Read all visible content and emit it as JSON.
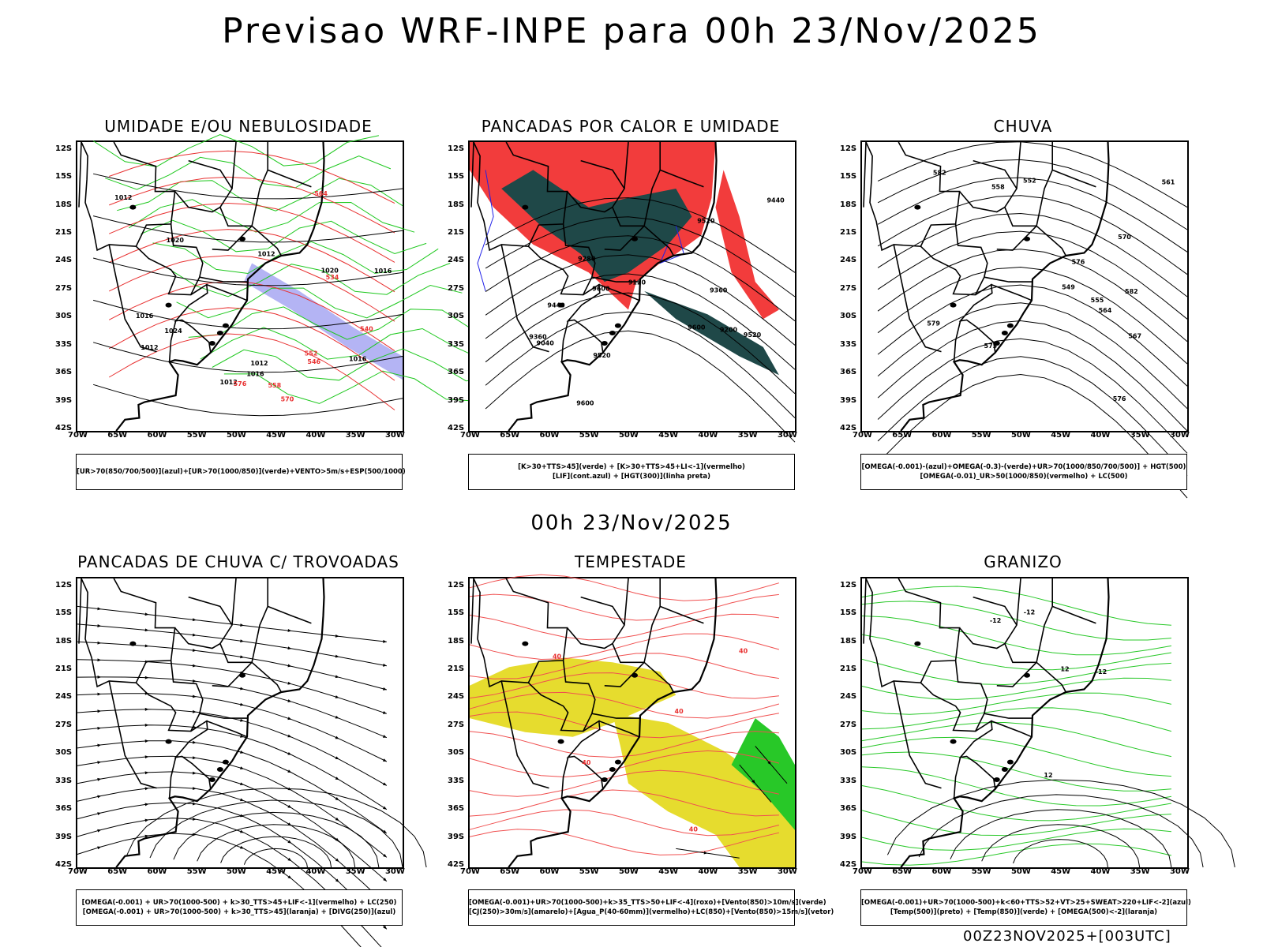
{
  "title": "Previsao WRF-INPE  para 00h 23/Nov/2025",
  "mid_title": "00h 23/Nov/2025",
  "footer": "00Z23NOV2025+[003UTC]",
  "lat_labels": [
    "12S",
    "15S",
    "18S",
    "21S",
    "24S",
    "27S",
    "30S",
    "33S",
    "36S",
    "39S",
    "42S"
  ],
  "lon_labels": [
    "70W",
    "65W",
    "60W",
    "55W",
    "50W",
    "45W",
    "40W",
    "35W",
    "30W"
  ],
  "panels": [
    {
      "title": "UMIDADE E/OU NEBULOSIDADE",
      "legend": [
        "[UR>70(850/700/500)](azul)+[UR>70(1000/850)](verde)+VENTO>5m/s+ESP(500/1000)"
      ],
      "contour_labels": [
        "1012",
        "1012",
        "1012",
        "1012",
        "1016",
        "1012",
        "1016",
        "1016",
        "1020",
        "1020",
        "1024",
        "1016",
        "576",
        "570",
        "564",
        "558",
        "552",
        "546",
        "540",
        "534"
      ]
    },
    {
      "title": "PANCADAS POR CALOR E UMIDADE",
      "legend": [
        "[K>30+TTS>45](verde) + [K>30+TTS>45+LI<-1](vermelho)",
        "[LIF](cont.azul) + [HGT(300)](linha preta)"
      ],
      "contour_labels": [
        "9600",
        "9600",
        "9600",
        "9520",
        "9520",
        "9520",
        "9440",
        "9440",
        "9360",
        "9360",
        "9280",
        "9200",
        "9120",
        "9040"
      ]
    },
    {
      "title": "CHUVA",
      "legend": [
        "[OMEGA(-0.001)-(azul)+OMEGA(-0.3)-(verde)+UR>70(1000/850/700/500)] + HGT(500)",
        "[OMEGA(-0.01)_UR>50(1000/850)(vermelho) + LC(500)"
      ],
      "contour_labels": [
        "582",
        "582",
        "579",
        "576",
        "576",
        "573",
        "570",
        "567",
        "564",
        "561",
        "558",
        "555",
        "552",
        "549"
      ]
    },
    {
      "title": "PANCADAS DE CHUVA C/ TROVOADAS",
      "legend": [
        "[OMEGA(-0.001) + UR>70(1000-500) + k>30_TTS>45+LIF<-1](vermelho) + LC(250)",
        "[OMEGA(-0.001) + UR>70(1000-500) + k>30_TTS>45](laranja) + [DIVG(250)](azul)"
      ],
      "contour_labels": []
    },
    {
      "title": "TEMPESTADE",
      "legend": [
        "[OMEGA(-0.001)+UR>70(1000-500)+k>35_TTS>50+LIF<-4](roxo)+[Vento(850)>10m/s](verde)",
        "[CJ(250)>30m/s](amarelo)+[Agua_P(40-60mm)](vermelho)+LC(850)+[Vento(850)>15m/s](vetor)"
      ],
      "contour_labels": [
        "40",
        "40",
        "40",
        "40",
        "40"
      ]
    },
    {
      "title": "GRANIZO",
      "legend": [
        "[OMEGA(-0.001)+UR>70(1000-500)+k<60+TTS>52+VT>25+SWEAT>220+LIF<-2](azul)",
        "[Temp(500)](preto) + [Temp(850)](verde) + [OMEGA(500)<-2](laranja)"
      ],
      "contour_labels": [
        "-12",
        "-12",
        "-12",
        "12",
        "12"
      ]
    }
  ]
}
